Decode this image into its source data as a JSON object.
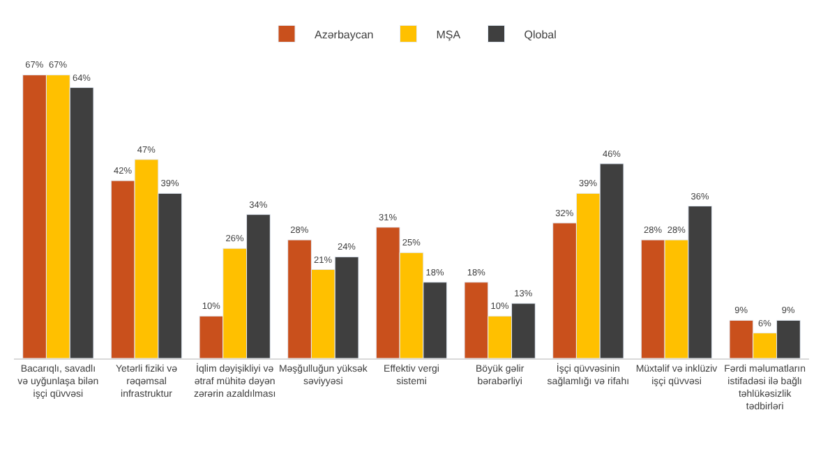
{
  "chart_data": {
    "type": "bar",
    "categories": [
      "Bacarıqlı, savadlı və uyğunlaşa bilən işçi qüvvəsi",
      "Yetərli fiziki və rəqəmsal infrastruktur",
      "İqlim dəyişikliyi və ətraf mühitə dəyən zərərin azaldılması",
      "Məşğulluğun yüksək səviyyəsi",
      "Effektiv vergi sistemi",
      "Böyük gəlir bərabərliyi",
      "İşçi qüvvəsinin sağlamlığı və rifahı",
      "Müxtəlif və inklüziv işçi qüvvəsi",
      "Fərdi məlumatların istifadəsi ilə bağlı təhlükəsizlik tədbirləri"
    ],
    "series": [
      {
        "name": "Azərbaycan",
        "color": "#c9501c",
        "values": [
          67,
          42,
          10,
          28,
          31,
          18,
          32,
          28,
          9
        ],
        "value_labels": [
          "67%",
          "42%",
          "10%",
          "28%",
          "31%",
          "18%",
          "32%",
          "28%",
          "9%"
        ]
      },
      {
        "name": "MŞA",
        "color": "#ffc000",
        "values": [
          67,
          47,
          26,
          21,
          25,
          10,
          39,
          28,
          6
        ],
        "value_labels": [
          "67%",
          "47%",
          "26%",
          "21%",
          "25%",
          "10%",
          "39%",
          "28%",
          "6%"
        ]
      },
      {
        "name": "Qlobal",
        "color": "#3f3f3f",
        "values": [
          64,
          39,
          34,
          24,
          18,
          13,
          46,
          36,
          9
        ],
        "value_labels": [
          "64%",
          "39%",
          "34%",
          "24%",
          "18%",
          "13%",
          "46%",
          "36%",
          "9%"
        ]
      }
    ],
    "legend": "top"
  }
}
